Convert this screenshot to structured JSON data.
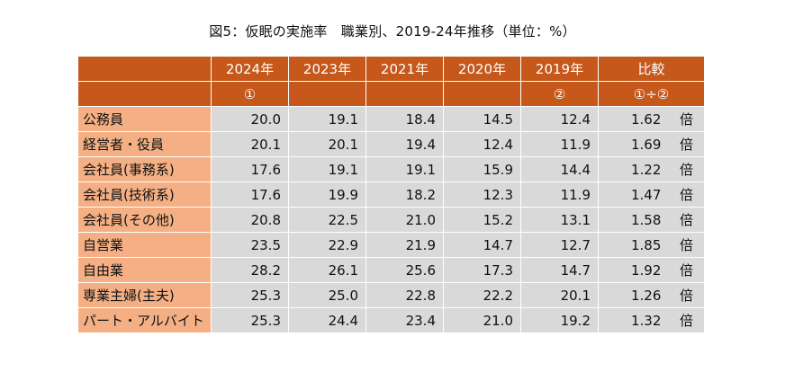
{
  "chart_data": {
    "type": "table",
    "title": "図5：仮眠の実施率　職業別、2019-24年推移（単位：%）",
    "columns": [
      "2024年",
      "2023年",
      "2021年",
      "2020年",
      "2019年",
      "比較"
    ],
    "column_markers": [
      "①",
      "",
      "",
      "",
      "②",
      "①÷②"
    ],
    "ratio_unit": "倍",
    "rows": [
      {
        "label": "公務員",
        "values": [
          "20.0",
          "19.1",
          "18.4",
          "14.5",
          "12.4"
        ],
        "ratio": "1.62"
      },
      {
        "label": "経営者・役員",
        "values": [
          "20.1",
          "20.1",
          "19.4",
          "12.4",
          "11.9"
        ],
        "ratio": "1.69"
      },
      {
        "label": "会社員(事務系)",
        "values": [
          "17.6",
          "19.1",
          "19.1",
          "15.9",
          "14.4"
        ],
        "ratio": "1.22"
      },
      {
        "label": "会社員(技術系)",
        "values": [
          "17.6",
          "19.9",
          "18.2",
          "12.3",
          "11.9"
        ],
        "ratio": "1.47"
      },
      {
        "label": "会社員(その他)",
        "values": [
          "20.8",
          "22.5",
          "21.0",
          "15.2",
          "13.1"
        ],
        "ratio": "1.58"
      },
      {
        "label": "自営業",
        "values": [
          "23.5",
          "22.9",
          "21.9",
          "14.7",
          "12.7"
        ],
        "ratio": "1.85"
      },
      {
        "label": "自由業",
        "values": [
          "28.2",
          "26.1",
          "25.6",
          "17.3",
          "14.7"
        ],
        "ratio": "1.92"
      },
      {
        "label": "専業主婦(主夫)",
        "values": [
          "25.3",
          "25.0",
          "22.8",
          "22.2",
          "20.1"
        ],
        "ratio": "1.26"
      },
      {
        "label": "パート・アルバイト",
        "values": [
          "25.3",
          "24.4",
          "23.4",
          "21.0",
          "19.2"
        ],
        "ratio": "1.32"
      }
    ]
  },
  "colors": {
    "header_bg": "#c5581a",
    "label_bg": "#f4b084",
    "cell_bg": "#d9d9d9"
  }
}
